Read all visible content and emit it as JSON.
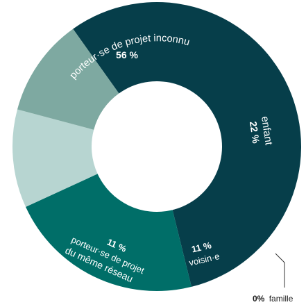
{
  "chart_data": {
    "type": "pie",
    "donut": true,
    "slices": [
      {
        "name": "porteur·se de projet inconnu",
        "value": 56,
        "label": "56 %",
        "color": "#063e4a"
      },
      {
        "name": "enfant",
        "value": 22,
        "label": "22 %",
        "color": "#006e68"
      },
      {
        "name": "voisin·e",
        "value": 11,
        "label": "11 %",
        "color": "#b7d5d1"
      },
      {
        "name": "porteur·se de projet du même réseau",
        "value": 11,
        "label": "11 %",
        "color": "#7ea9a1"
      },
      {
        "name": "famille",
        "value": 0,
        "label": "0%",
        "color": "#ffffff"
      }
    ]
  },
  "labels": {
    "inconnu_name": "porteur·se de projet inconnu",
    "inconnu_pct": "56 %",
    "enfant_name": "enfant",
    "enfant_pct": "22 %",
    "voisin_name": "voisin·e",
    "voisin_pct": "11 %",
    "reseau_line1": "porteur·se de projet",
    "reseau_line2": "du même réseau",
    "reseau_pct": "11 %",
    "famille_pct": "0%",
    "famille_name": "famille"
  }
}
